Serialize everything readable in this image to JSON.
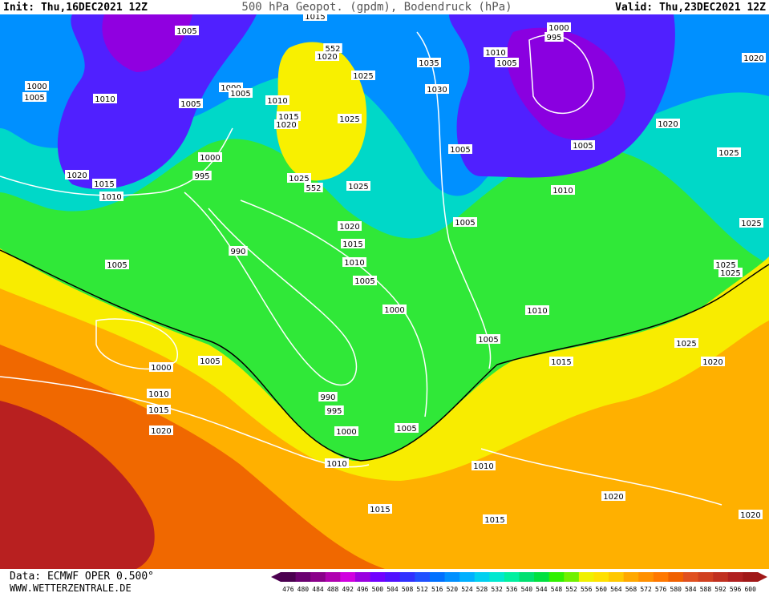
{
  "header": {
    "init": "Init: Thu,16DEC2021 12Z",
    "title": "500 hPa Geopot. (gpdm), Bodendruck (hPa)",
    "valid": "Valid: Thu,23DEC2021 12Z"
  },
  "isobar_labels": [
    "1005",
    "1015",
    "552",
    "1020",
    "1000",
    "995",
    "1010",
    "1005",
    "1020",
    "1035",
    "1025",
    "1000",
    "1005",
    "1010",
    "1005",
    "1000",
    "1005",
    "1030",
    "1010",
    "1015",
    "1020",
    "1025",
    "1020",
    "1005",
    "1005",
    "1025",
    "1000",
    "995",
    "1020",
    "1015",
    "1010",
    "1025",
    "552",
    "1025",
    "1010",
    "1025",
    "1005",
    "1020",
    "1015",
    "990",
    "1010",
    "1005",
    "1005",
    "1025",
    "1025",
    "1000",
    "1010",
    "1005",
    "1025",
    "1005",
    "1015",
    "1020",
    "1000",
    "1010",
    "990",
    "1015",
    "995",
    "1005",
    "1020",
    "1000",
    "1010",
    "1010",
    "1020",
    "1015",
    "1020",
    "1015"
  ],
  "footer": {
    "data": "Data: ECMWF OPER 0.500°",
    "site": "WWW.WETTERZENTRALE.DE"
  },
  "colorbar": {
    "labels": [
      476,
      480,
      484,
      488,
      492,
      496,
      500,
      504,
      508,
      512,
      516,
      520,
      524,
      528,
      532,
      536,
      540,
      544,
      548,
      552,
      556,
      560,
      564,
      568,
      572,
      576,
      580,
      584,
      588,
      592,
      596,
      600
    ],
    "colors": [
      "#4b0050",
      "#6a0070",
      "#8a008a",
      "#b000b0",
      "#d000e0",
      "#9a00e0",
      "#7000ff",
      "#5010ff",
      "#3030ff",
      "#2050ff",
      "#0070ff",
      "#0090ff",
      "#00b0ff",
      "#00d0f0",
      "#00e8d0",
      "#00f0a0",
      "#00e070",
      "#00e040",
      "#30f000",
      "#70f000",
      "#f0f000",
      "#ffe000",
      "#ffc800",
      "#ffa800",
      "#ff9000",
      "#ff7800",
      "#f06000",
      "#e05020",
      "#d04020",
      "#c03020",
      "#b02020",
      "#a01818"
    ]
  }
}
